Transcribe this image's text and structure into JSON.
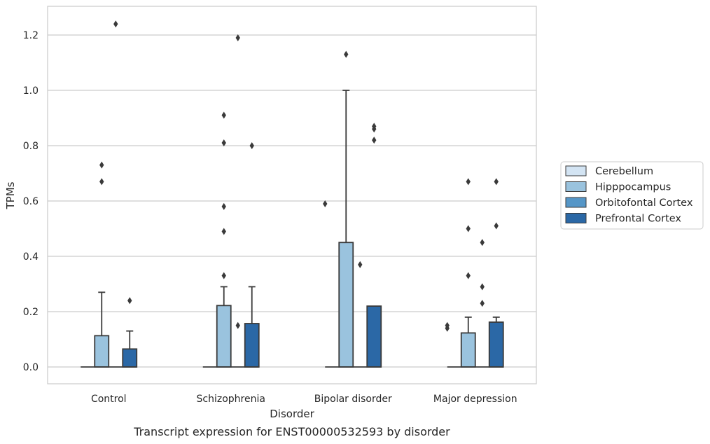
{
  "chart_data": {
    "type": "box",
    "xlabel": "Disorder",
    "ylabel": "TPMs",
    "caption": "Transcript expression for ENST00000532593 by disorder",
    "ylim": [
      -0.06,
      1.3
    ],
    "yticks": [
      "0.0",
      "0.2",
      "0.4",
      "0.6",
      "0.8",
      "1.0",
      "1.2"
    ],
    "ytick_values": [
      0.0,
      0.2,
      0.4,
      0.6,
      0.8,
      1.0,
      1.2
    ],
    "grid": true,
    "legend_position": "right",
    "categories": [
      "Control",
      "Schizophrenia",
      "Bipolar disorder",
      "Major depression"
    ],
    "series": [
      {
        "name": "Cerebellum",
        "color": "#d3e4f3",
        "boxes": [
          {
            "q1": 0,
            "q3": 0,
            "median": 0,
            "whisker_low": 0,
            "whisker_high": 0,
            "outliers": []
          },
          {
            "q1": 0,
            "q3": 0,
            "median": 0,
            "whisker_low": 0,
            "whisker_high": 0,
            "outliers": []
          },
          {
            "q1": 0,
            "q3": 0,
            "median": 0,
            "whisker_low": 0,
            "whisker_high": 0,
            "outliers": []
          },
          {
            "q1": 0,
            "q3": 0,
            "median": 0,
            "whisker_low": 0,
            "whisker_high": 0,
            "outliers": []
          }
        ]
      },
      {
        "name": "Hipppocampus",
        "color": "#9ac3de",
        "boxes": [
          {
            "q1": 0,
            "q3": 0.113,
            "median": 0,
            "whisker_low": 0,
            "whisker_high": 0.27,
            "outliers": [
              0.67,
              0.73
            ]
          },
          {
            "q1": 0,
            "q3": 0.222,
            "median": 0,
            "whisker_low": 0,
            "whisker_high": 0.29,
            "outliers": [
              0.33,
              0.49,
              0.58,
              0.81,
              0.91
            ]
          },
          {
            "q1": 0,
            "q3": 0.45,
            "median": 0,
            "whisker_low": 0,
            "whisker_high": 1.0,
            "outliers": [
              1.13
            ]
          },
          {
            "q1": 0,
            "q3": 0.123,
            "median": 0,
            "whisker_low": 0,
            "whisker_high": 0.18,
            "outliers": [
              0.33,
              0.5,
              0.67
            ]
          }
        ]
      },
      {
        "name": "Orbitofontal Cortex",
        "color": "#5596c7",
        "boxes": [
          {
            "q1": 0,
            "q3": 0,
            "median": 0,
            "whisker_low": 0,
            "whisker_high": 0,
            "outliers": [
              1.24
            ]
          },
          {
            "q1": 0,
            "q3": 0,
            "median": 0,
            "whisker_low": 0,
            "whisker_high": 0,
            "outliers": [
              0.15,
              1.19
            ]
          },
          {
            "q1": 0,
            "q3": 0,
            "median": 0,
            "whisker_low": 0,
            "whisker_high": 0,
            "outliers": [
              0.37
            ]
          },
          {
            "q1": 0,
            "q3": 0,
            "median": 0,
            "whisker_low": 0,
            "whisker_high": 0,
            "outliers": [
              0.23,
              0.29,
              0.45
            ]
          }
        ]
      },
      {
        "name": "Prefrontal Cortex",
        "color": "#2b68a6",
        "boxes": [
          {
            "q1": 0,
            "q3": 0.065,
            "median": 0,
            "whisker_low": 0,
            "whisker_high": 0.13,
            "outliers": [
              0.24
            ]
          },
          {
            "q1": 0,
            "q3": 0.157,
            "median": 0,
            "whisker_low": 0,
            "whisker_high": 0.29,
            "outliers": [
              0.8
            ]
          },
          {
            "q1": 0,
            "q3": 0.22,
            "median": 0,
            "whisker_low": 0,
            "whisker_high": 0.22,
            "outliers": [
              0.82,
              0.86,
              0.87
            ]
          },
          {
            "q1": 0,
            "q3": 0.162,
            "median": 0,
            "whisker_low": 0,
            "whisker_high": 0.18,
            "outliers": [
              0.51,
              0.67
            ]
          }
        ]
      }
    ],
    "extra_outliers": [
      {
        "category_index": 3,
        "position": "left-edge",
        "values": [
          0.14,
          0.15
        ]
      },
      {
        "category_index": 2,
        "position": "left-edge",
        "values": [
          0.59
        ]
      }
    ]
  }
}
